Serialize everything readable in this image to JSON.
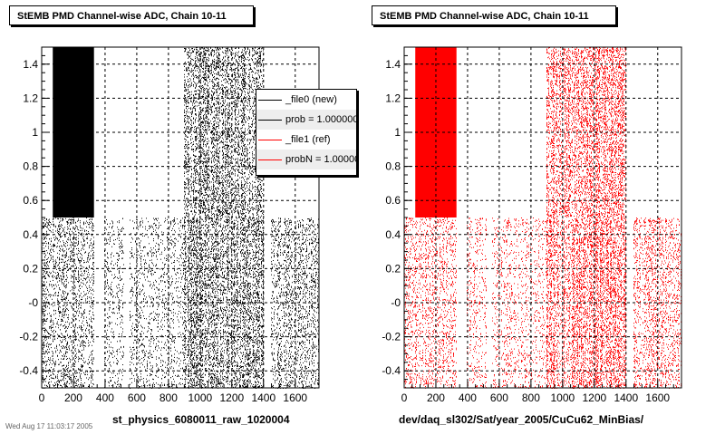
{
  "chart_data": [
    {
      "type": "scatter",
      "title": "StEMB PMD Channel-wise ADC, Chain 10-11",
      "xlabel": "st_physics_6080011_raw_1020004",
      "ylabel": "",
      "xlim": [
        0,
        1750
      ],
      "ylim": [
        -0.5,
        1.5
      ],
      "x_ticks": [
        0,
        200,
        400,
        600,
        800,
        1000,
        1200,
        1400,
        1600
      ],
      "y_ticks": [
        -0.4,
        -0.2,
        0,
        0.2,
        0.4,
        0.6,
        0.8,
        1,
        1.2,
        1.4
      ],
      "y_tick_labels": [
        "-0.4",
        "-0.2",
        "-0",
        "0.2",
        "0.4",
        "0.6",
        "0.8",
        "1",
        "1.2",
        "1.4"
      ],
      "grid": true,
      "color": "#000000",
      "legend_position": "top-right",
      "legend": [
        {
          "label": "_file0 (new)",
          "color": "#000000"
        },
        {
          "label": "prob = 1.000000",
          "color": "#000000"
        },
        {
          "label": "_file1 (ref)",
          "color": "#ff0000"
        },
        {
          "label": "probN = 1.000000",
          "color": "#ff0000"
        }
      ],
      "dense_regions": [
        {
          "x": [
            70,
            330
          ],
          "y": [
            0.5,
            1.5
          ],
          "density": "solid"
        },
        {
          "x": [
            900,
            1400
          ],
          "y": [
            0.5,
            1.5
          ],
          "density": "high"
        },
        {
          "x": [
            0,
            330
          ],
          "y": [
            -0.5,
            0.5
          ],
          "density": "medium"
        },
        {
          "x": [
            400,
            520
          ],
          "y": [
            -0.5,
            0.5
          ],
          "density": "low"
        },
        {
          "x": [
            560,
            900
          ],
          "y": [
            -0.5,
            0.5
          ],
          "density": "low"
        },
        {
          "x": [
            900,
            1400
          ],
          "y": [
            -0.5,
            0.5
          ],
          "density": "high"
        },
        {
          "x": [
            1450,
            1750
          ],
          "y": [
            -0.5,
            0.5
          ],
          "density": "medium"
        }
      ]
    },
    {
      "type": "scatter",
      "title": "StEMB PMD Channel-wise ADC, Chain 10-11",
      "xlabel": "dev/daq_sl302/Sat/year_2005/CuCu62_MinBias/",
      "ylabel": "",
      "xlim": [
        0,
        1750
      ],
      "ylim": [
        -0.5,
        1.5
      ],
      "x_ticks": [
        0,
        200,
        400,
        600,
        800,
        1000,
        1200,
        1400,
        1600
      ],
      "y_ticks": [
        -0.4,
        -0.2,
        0,
        0.2,
        0.4,
        0.6,
        0.8,
        1,
        1.2,
        1.4
      ],
      "y_tick_labels": [
        "-0.4",
        "-0.2",
        "-0",
        "0.2",
        "0.4",
        "0.6",
        "0.8",
        "1",
        "1.2",
        "1.4"
      ],
      "grid": true,
      "color": "#ff0000",
      "dense_regions": [
        {
          "x": [
            70,
            330
          ],
          "y": [
            0.5,
            1.5
          ],
          "density": "solid"
        },
        {
          "x": [
            900,
            1400
          ],
          "y": [
            0.5,
            1.5
          ],
          "density": "high"
        },
        {
          "x": [
            0,
            330
          ],
          "y": [
            -0.5,
            0.5
          ],
          "density": "medium"
        },
        {
          "x": [
            400,
            520
          ],
          "y": [
            -0.5,
            0.5
          ],
          "density": "low"
        },
        {
          "x": [
            560,
            900
          ],
          "y": [
            -0.5,
            0.5
          ],
          "density": "low"
        },
        {
          "x": [
            900,
            1400
          ],
          "y": [
            -0.5,
            0.5
          ],
          "density": "high"
        },
        {
          "x": [
            1450,
            1750
          ],
          "y": [
            -0.5,
            0.5
          ],
          "density": "medium"
        }
      ]
    }
  ],
  "footer": {
    "stamp": "Wed Aug 17 11:03:17 2005"
  }
}
